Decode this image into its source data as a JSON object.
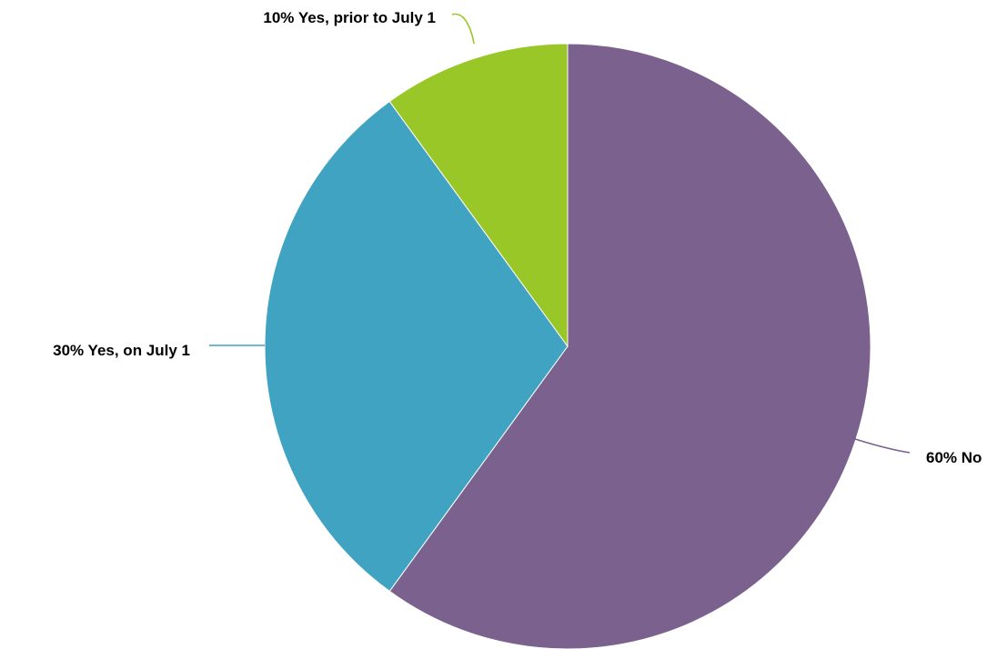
{
  "chart_data": {
    "type": "pie",
    "title": "",
    "slices": [
      {
        "label": "No",
        "value": 60,
        "display": "60% No",
        "color": "#7b618e"
      },
      {
        "label": "Yes, on July 1",
        "value": 30,
        "display": "30% Yes, on July 1",
        "color": "#40a3c2"
      },
      {
        "label": "Yes, prior to July 1",
        "value": 10,
        "display": "10% Yes, prior to July 1",
        "color": "#98c727"
      }
    ],
    "start_angle": "12 o'clock",
    "direction": "clockwise",
    "legend": "none"
  }
}
